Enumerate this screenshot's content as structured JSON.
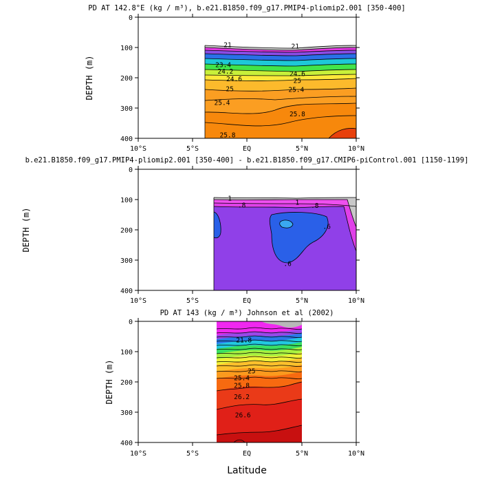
{
  "figure": {
    "x_axis_label": "Latitude",
    "x_ticks": [
      "10°S",
      "5°S",
      "EQ",
      "5°N",
      "10°N"
    ],
    "y_ticks": [
      "0",
      "100",
      "200",
      "300",
      "400"
    ]
  },
  "chart_data": [
    {
      "type": "heatmap",
      "title": "PD AT 142.8°E (kg / m³), b.e21.B1850.f09_g17.PMIP4-pliomip2.001 [350-400]",
      "xlabel": "",
      "ylabel": "DEPTH (m)",
      "xlim": [
        -10,
        10
      ],
      "ylim": [
        400,
        0
      ],
      "data_extent_lat": [
        -3.8,
        10
      ],
      "contour_labels": [
        {
          "text": "21",
          "lat": -1.8,
          "depth": 92
        },
        {
          "text": "21",
          "lat": 4.4,
          "depth": 97
        },
        {
          "text": "23.4",
          "lat": -2.2,
          "depth": 158
        },
        {
          "text": "24.2",
          "lat": -2.0,
          "depth": 180
        },
        {
          "text": "24.6",
          "lat": -1.2,
          "depth": 205
        },
        {
          "text": "24.6",
          "lat": 4.6,
          "depth": 188
        },
        {
          "text": "25",
          "lat": 4.6,
          "depth": 210
        },
        {
          "text": "25",
          "lat": -1.6,
          "depth": 237
        },
        {
          "text": "25.4",
          "lat": 4.5,
          "depth": 240
        },
        {
          "text": "25.4",
          "lat": -2.3,
          "depth": 283
        },
        {
          "text": "25.8",
          "lat": 4.6,
          "depth": 320
        },
        {
          "text": "25.8",
          "lat": -1.8,
          "depth": 390
        }
      ]
    },
    {
      "type": "heatmap",
      "title": "b.e21.B1850.f09_g17.PMIP4-pliomip2.001 [350-400] - b.e21.B1850.f09_g17.CMIP6-piControl.001 [1150-1199]",
      "xlabel": "",
      "ylabel": "DEPTH (m)",
      "xlim": [
        -10,
        10
      ],
      "ylim": [
        400,
        0
      ],
      "data_extent_lat": [
        -3.2,
        10
      ],
      "contour_labels": [
        {
          "text": "1",
          "lat": -1.6,
          "depth": 97
        },
        {
          "text": "1",
          "lat": 4.6,
          "depth": 110
        },
        {
          "text": ".8",
          "lat": -0.5,
          "depth": 119
        },
        {
          "text": ".8",
          "lat": 6.2,
          "depth": 120
        },
        {
          "text": ".6",
          "lat": 7.3,
          "depth": 190
        },
        {
          "text": ".6",
          "lat": 3.7,
          "depth": 313
        }
      ]
    },
    {
      "type": "heatmap",
      "title": "PD AT 143 (kg / m³) Johnson et al (2002)",
      "xlabel": "Latitude",
      "ylabel": "DEPTH (m)",
      "xlim": [
        -10,
        10
      ],
      "ylim": [
        400,
        0
      ],
      "data_extent_lat": [
        -2.5,
        5
      ],
      "contour_labels": [
        {
          "text": "21.8",
          "lat": -0.3,
          "depth": 62
        },
        {
          "text": "25",
          "lat": 0.4,
          "depth": 165
        },
        {
          "text": "25.4",
          "lat": -0.5,
          "depth": 188
        },
        {
          "text": "25.8",
          "lat": -0.5,
          "depth": 213
        },
        {
          "text": "26.2",
          "lat": -0.5,
          "depth": 250
        },
        {
          "text": "26.6",
          "lat": -0.4,
          "depth": 310
        }
      ]
    }
  ]
}
